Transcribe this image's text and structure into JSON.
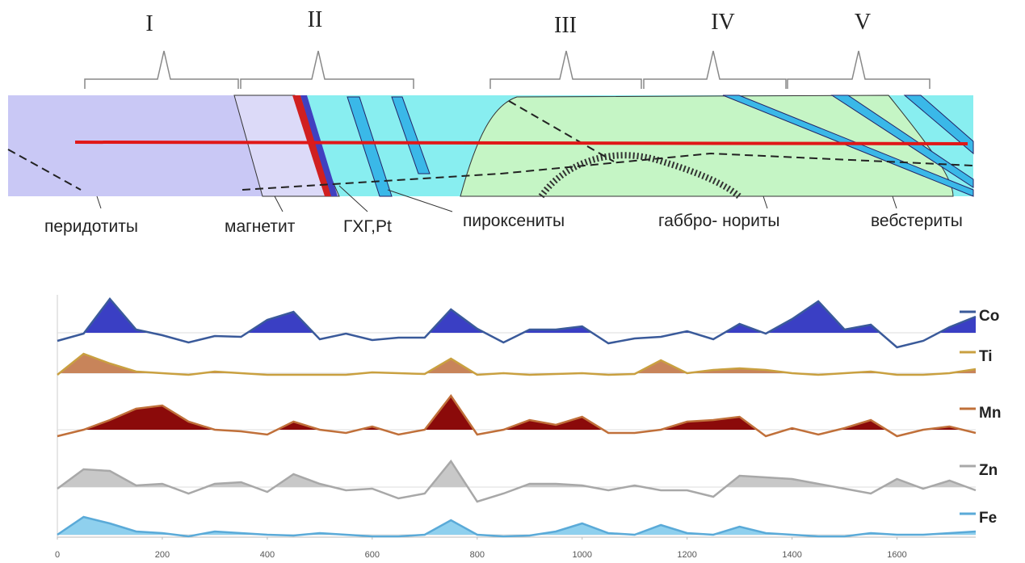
{
  "section": {
    "zones": [
      "I",
      "II",
      "III",
      "IV",
      "V"
    ],
    "rocks": [
      "перидотиты",
      "магнетит",
      "ГХГ,Pt",
      "пироксениты",
      "габбро- нориты",
      "вебстериты"
    ]
  },
  "chart_data": {
    "type": "line",
    "xlim": [
      0,
      1750
    ],
    "xticks": [
      0,
      200,
      400,
      600,
      800,
      1000,
      1200,
      1400,
      1600
    ],
    "x": [
      0,
      50,
      100,
      150,
      200,
      250,
      300,
      350,
      400,
      450,
      500,
      550,
      600,
      650,
      700,
      750,
      800,
      850,
      900,
      950,
      1000,
      1050,
      1100,
      1150,
      1200,
      1250,
      1300,
      1350,
      1400,
      1450,
      1500,
      1550,
      1600,
      1650,
      1700,
      1750
    ],
    "series": [
      {
        "name": "Co",
        "color": "#3a5a9a",
        "fill": "#3a3fc4",
        "values": [
          -10,
          -1,
          42,
          4,
          -3,
          -12,
          -4,
          -5,
          16,
          26,
          -8,
          -1,
          -9,
          -6,
          -6,
          29,
          5,
          -12,
          4,
          4,
          8,
          -13,
          -7,
          -5,
          2,
          -8,
          11,
          -1,
          17,
          39,
          4,
          10,
          -18,
          -10,
          7,
          20
        ]
      },
      {
        "name": "Ti",
        "color": "#c9a040",
        "fill": "#c8845a",
        "values": [
          -2,
          24,
          12,
          2,
          0,
          -2,
          2,
          0,
          -2,
          -2,
          -2,
          -2,
          1,
          0,
          -1,
          18,
          -2,
          0,
          -2,
          -1,
          0,
          -2,
          -1,
          16,
          0,
          4,
          6,
          4,
          0,
          -2,
          0,
          2,
          -2,
          -2,
          0,
          5
        ]
      },
      {
        "name": "Mn",
        "color": "#c0703a",
        "fill": "#8b0a0a",
        "values": [
          -8,
          0,
          12,
          26,
          30,
          10,
          0,
          -2,
          -6,
          10,
          0,
          -4,
          4,
          -6,
          0,
          42,
          -6,
          0,
          12,
          6,
          16,
          -4,
          -4,
          0,
          10,
          12,
          16,
          -8,
          2,
          -6,
          2,
          12,
          -8,
          0,
          4,
          -4
        ]
      },
      {
        "name": "Zn",
        "color": "#a8a8a8",
        "fill": "#c8c8c8",
        "values": [
          -2,
          22,
          20,
          2,
          4,
          -8,
          4,
          6,
          -6,
          16,
          4,
          -4,
          -2,
          -14,
          -8,
          32,
          -18,
          -8,
          4,
          4,
          2,
          -4,
          2,
          -4,
          -4,
          -12,
          14,
          12,
          10,
          4,
          -2,
          -8,
          10,
          -2,
          8,
          -4
        ]
      },
      {
        "name": "Fe",
        "color": "#5aaad8",
        "fill": "#8fd0ee",
        "values": [
          0,
          22,
          14,
          4,
          2,
          -2,
          4,
          2,
          0,
          -1,
          2,
          0,
          -2,
          -2,
          0,
          18,
          0,
          -2,
          -1,
          4,
          14,
          2,
          0,
          12,
          2,
          0,
          10,
          2,
          0,
          -2,
          -2,
          2,
          0,
          0,
          2,
          4
        ]
      }
    ]
  }
}
